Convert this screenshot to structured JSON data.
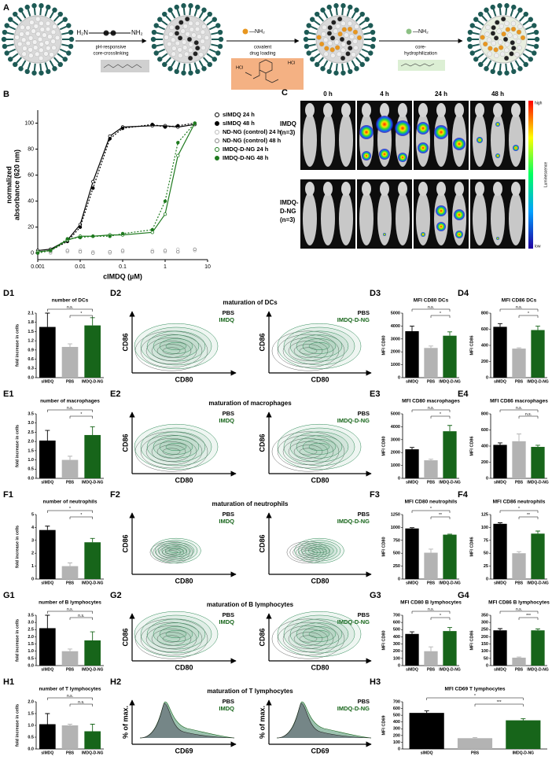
{
  "panel_a": {
    "label": "A",
    "linker": {
      "left": "H₂N",
      "right": "NH₂"
    },
    "steps": [
      {
        "line1": "pH-responsive",
        "line2": "core-crosslinking"
      },
      {
        "line1": "covalent",
        "line2": "drug loading"
      },
      {
        "line1": "core-",
        "line2": "hydrophilization"
      }
    ],
    "amine": "—NH₂",
    "salt": "HCl"
  },
  "panel_c": {
    "label": "C",
    "times": [
      "0 h",
      "4 h",
      "24 h",
      "48 h"
    ],
    "rows": [
      [
        "IMDQ",
        "(n=3)"
      ],
      [
        "IMDQ-",
        "D-NG",
        "(n=3)"
      ]
    ],
    "scale": {
      "high": "high",
      "low": "low",
      "title": "Luminescence"
    }
  },
  "contour_panels": [
    {
      "panel": "D2",
      "title": "maturation of DCs",
      "y_label": "CD86",
      "x_label": "CD80",
      "legends": [
        [
          "PBS",
          "IMDQ"
        ],
        [
          "PBS",
          "IMDQ-D-NG"
        ]
      ]
    },
    {
      "panel": "E2",
      "title": "maturation of macrophages",
      "y_label": "CD86",
      "x_label": "CD80",
      "legends": [
        [
          "PBS",
          "IMDQ"
        ],
        [
          "PBS",
          "IMDQ-D-NG"
        ]
      ]
    },
    {
      "panel": "F2",
      "title": "maturation of neutrophils",
      "y_label": "CD86",
      "x_label": "CD80",
      "legends": [
        [
          "PBS",
          "IMDQ"
        ],
        [
          "PBS",
          "IMDQ-D-NG"
        ]
      ]
    },
    {
      "panel": "G2",
      "title": "maturation of B lymphocytes",
      "y_label": "CD86",
      "x_label": "CD80",
      "legends": [
        [
          "PBS",
          "IMDQ"
        ],
        [
          "PBS",
          "IMDQ-D-NG"
        ]
      ]
    },
    {
      "panel": "H2",
      "title": "maturation of T lymphocytes",
      "y_label": "% of max.",
      "x_label": "CD69",
      "legends": [
        [
          "PBS",
          "IMDQ"
        ],
        [
          "PBS",
          "IMDQ-D-NG"
        ]
      ]
    }
  ],
  "chart_data": [
    {
      "type": "line",
      "panel": "B",
      "y_label": [
        "normalized",
        "absorbance (620 nm)"
      ],
      "x_label": "cIMDQ (µM)",
      "log_x": true,
      "xlim": [
        0.001,
        10
      ],
      "xticks": [
        0.001,
        0.01,
        0.1,
        1,
        10
      ],
      "ylim": [
        -5,
        110
      ],
      "yticks": [
        0,
        20,
        40,
        60,
        80,
        100
      ],
      "x": [
        0.001,
        0.002,
        0.005,
        0.01,
        0.02,
        0.05,
        0.1,
        0.5,
        1,
        2,
        5
      ],
      "series": [
        {
          "name": "sIMDQ 24 h",
          "color": "#000000",
          "marker": "open",
          "line_style": "solid",
          "values": [
            2,
            3,
            10,
            22,
            55,
            90,
            97,
            98,
            98,
            97,
            99
          ]
        },
        {
          "name": "sIMDQ 48 h",
          "color": "#000000",
          "marker": "filled",
          "line_style": "dotted",
          "values": [
            1,
            2,
            9,
            20,
            50,
            88,
            96,
            99,
            97,
            98,
            100
          ]
        },
        {
          "name": "ND-NG (control) 24 h",
          "color": "#bbbbbb",
          "marker": "open",
          "line_style": "none",
          "values": [
            1,
            0,
            1,
            2,
            1,
            0,
            1,
            2,
            1,
            3,
            2
          ]
        },
        {
          "name": "ND-NG (control) 48 h",
          "color": "#888888",
          "marker": "open",
          "line_style": "none",
          "values": [
            0,
            1,
            2,
            1,
            0,
            1,
            2,
            1,
            2,
            1,
            3
          ]
        },
        {
          "name": "IMDQ-D-NG 24 h",
          "color": "#1f7a1f",
          "marker": "open",
          "line_style": "solid",
          "values": [
            1,
            2,
            10,
            13,
            13,
            14,
            14,
            16,
            30,
            75,
            100
          ]
        },
        {
          "name": "IMDQ-D-NG 48 h",
          "color": "#1f7a1f",
          "marker": "filled",
          "line_style": "dotted",
          "values": [
            0,
            2,
            11,
            12,
            13,
            13,
            15,
            18,
            40,
            85,
            100
          ]
        }
      ]
    },
    {
      "type": "bar",
      "panel": "D1",
      "title": "number of DCs",
      "y_label": "fold increase in cells",
      "categories": [
        "sIMDQ",
        "PBS",
        "IMDQ-D-NG"
      ],
      "colors": [
        "#000000",
        "#b3b3b3",
        "#17651a"
      ],
      "values": [
        1.65,
        1.0,
        1.7
      ],
      "errors": [
        0.45,
        0.1,
        0.25
      ],
      "ylim": [
        0,
        2.1
      ],
      "yticks": [
        {
          "value": 0,
          "label": "0.0"
        },
        0.3,
        0.6,
        0.9,
        1.2,
        1.5,
        1.8,
        2.1
      ],
      "annotations": [
        "n.s.",
        "*"
      ]
    },
    {
      "type": "bar",
      "panel": "D3",
      "title": "MFI CD80 DCs",
      "y_label": "MFI CD80",
      "categories": [
        "sIMDQ",
        "PBS",
        "IMDQ-D-NG"
      ],
      "colors": [
        "#000000",
        "#b3b3b3",
        "#17651a"
      ],
      "values": [
        3600,
        2300,
        3250
      ],
      "errors": [
        400,
        150,
        300
      ],
      "ylim": [
        0,
        5000
      ],
      "yticks": [
        0,
        1000,
        2000,
        3000,
        4000,
        5000
      ],
      "annotations": [
        "n.s.",
        "*"
      ]
    },
    {
      "type": "bar",
      "panel": "D4",
      "title": "MFI CD86 DCs",
      "y_label": "MFI CD86",
      "categories": [
        "sIMDQ",
        "PBS",
        "IMDQ-D-NG"
      ],
      "colors": [
        "#000000",
        "#b3b3b3",
        "#17651a"
      ],
      "values": [
        630,
        360,
        590
      ],
      "errors": [
        40,
        10,
        50
      ],
      "ylim": [
        0,
        800
      ],
      "yticks": [
        0,
        200,
        400,
        600,
        800
      ],
      "annotations": [
        "n.s.",
        "*"
      ]
    },
    {
      "type": "bar",
      "panel": "E1",
      "title": "number of macrophages",
      "y_label": "fold increase in cells",
      "categories": [
        "sIMDQ",
        "PBS",
        "IMDQ-D-NG"
      ],
      "colors": [
        "#000000",
        "#b3b3b3",
        "#17651a"
      ],
      "values": [
        2.05,
        1.0,
        2.35
      ],
      "errors": [
        0.55,
        0.2,
        0.45
      ],
      "ylim": [
        0,
        3.5
      ],
      "yticks": [
        {
          "value": 0,
          "label": "0.0"
        },
        0.5,
        {
          "value": 1,
          "label": "1.0"
        },
        1.5,
        {
          "value": 2,
          "label": "2.0"
        },
        2.5,
        {
          "value": 3,
          "label": "3.0"
        },
        3.5
      ],
      "annotations": [
        "n.s.",
        "*"
      ]
    },
    {
      "type": "bar",
      "panel": "E3",
      "title": "MFI CD80 macrophages",
      "y_label": "MFI CD80",
      "categories": [
        "sIMDQ",
        "PBS",
        "IMDQ-D-NG"
      ],
      "colors": [
        "#000000",
        "#b3b3b3",
        "#17651a"
      ],
      "values": [
        2250,
        1400,
        3650
      ],
      "errors": [
        150,
        80,
        450
      ],
      "ylim": [
        0,
        5000
      ],
      "yticks": [
        0,
        1000,
        2000,
        3000,
        4000,
        5000
      ],
      "annotations": [
        "n.s.",
        "*"
      ]
    },
    {
      "type": "bar",
      "panel": "E4",
      "title": "MFI CD86 macrophages",
      "y_label": "MFI CD86",
      "categories": [
        "sIMDQ",
        "PBS",
        "IMDQ-D-NG"
      ],
      "colors": [
        "#000000",
        "#b3b3b3",
        "#17651a"
      ],
      "values": [
        415,
        460,
        390
      ],
      "errors": [
        25,
        90,
        20
      ],
      "ylim": [
        0,
        800
      ],
      "yticks": [
        0,
        200,
        400,
        600,
        800
      ],
      "annotations": [
        "n.s.",
        "n.s."
      ]
    },
    {
      "type": "bar",
      "panel": "F1",
      "title": "number of neutrophils",
      "y_label": "fold increase in cells",
      "categories": [
        "sIMDQ",
        "PBS",
        "IMDQ-D-NG"
      ],
      "colors": [
        "#000000",
        "#b3b3b3",
        "#17651a"
      ],
      "values": [
        3.8,
        1.0,
        2.85
      ],
      "errors": [
        0.3,
        0.25,
        0.3
      ],
      "ylim": [
        0,
        5
      ],
      "yticks": [
        0,
        1,
        2,
        3,
        4,
        5
      ],
      "annotations": [
        "*",
        "*"
      ]
    },
    {
      "type": "bar",
      "panel": "F3",
      "title": "MFI CD80 neutrophils",
      "y_label": "MFI CD80",
      "categories": [
        "sIMDQ",
        "PBS",
        "IMDQ-D-NG"
      ],
      "colors": [
        "#000000",
        "#b3b3b3",
        "#17651a"
      ],
      "values": [
        980,
        510,
        860
      ],
      "errors": [
        15,
        70,
        10
      ],
      "ylim": [
        0,
        1250
      ],
      "yticks": [
        0,
        250,
        500,
        750,
        1000,
        1250
      ],
      "annotations": [
        "*",
        "**"
      ]
    },
    {
      "type": "bar",
      "panel": "F4",
      "title": "MFI CD86 neutrophils",
      "y_label": "MFI CD86",
      "categories": [
        "sIMDQ",
        "PBS",
        "IMDQ-D-NG"
      ],
      "colors": [
        "#000000",
        "#b3b3b3",
        "#17651a"
      ],
      "values": [
        107,
        50,
        88
      ],
      "errors": [
        2,
        3,
        5
      ],
      "ylim": [
        0,
        125
      ],
      "yticks": [
        0,
        25,
        50,
        75,
        100,
        125
      ],
      "annotations": [
        "*",
        "**"
      ]
    },
    {
      "type": "bar",
      "panel": "G1",
      "title": "number of B lymphocytes",
      "y_label": "fold increase in cells",
      "categories": [
        "sIMDQ",
        "PBS",
        "IMDQ-D-NG"
      ],
      "colors": [
        "#000000",
        "#b3b3b3",
        "#17651a"
      ],
      "values": [
        2.6,
        1.0,
        1.75
      ],
      "errors": [
        0.9,
        0.15,
        0.6
      ],
      "ylim": [
        0,
        3.5
      ],
      "yticks": [
        {
          "value": 0,
          "label": "0.0"
        },
        0.5,
        {
          "value": 1,
          "label": "1.0"
        },
        1.5,
        {
          "value": 2,
          "label": "2.0"
        },
        2.5,
        {
          "value": 3,
          "label": "3.0"
        },
        3.5
      ],
      "annotations": [
        "n.s.",
        "n.s."
      ]
    },
    {
      "type": "bar",
      "panel": "G3",
      "title": "MFI CD80 B lymphocytes",
      "y_label": "MFI CD80",
      "categories": [
        "sIMDQ",
        "PBS",
        "IMDQ-D-NG"
      ],
      "colors": [
        "#000000",
        "#b3b3b3",
        "#17651a"
      ],
      "values": [
        440,
        200,
        480
      ],
      "errors": [
        30,
        60,
        50
      ],
      "ylim": [
        0,
        700
      ],
      "yticks": [
        0,
        100,
        200,
        300,
        400,
        500,
        600,
        700
      ],
      "annotations": [
        "n.s.",
        "*"
      ]
    },
    {
      "type": "bar",
      "panel": "G4",
      "title": "MFI CD86 B lymphocytes",
      "y_label": "MFI CD86",
      "categories": [
        "sIMDQ",
        "PBS",
        "IMDQ-D-NG"
      ],
      "colors": [
        "#000000",
        "#b3b3b3",
        "#17651a"
      ],
      "values": [
        245,
        55,
        245
      ],
      "errors": [
        12,
        5,
        10
      ],
      "ylim": [
        0,
        350
      ],
      "yticks": [
        0,
        50,
        100,
        150,
        200,
        250,
        300,
        350
      ],
      "annotations": [
        "n.s.",
        "***"
      ]
    },
    {
      "type": "bar",
      "panel": "H1",
      "title": "number of T lymphocytes",
      "y_label": "fold increase in cells",
      "categories": [
        "sIMDQ",
        "PBS",
        "IMDQ-D-NG"
      ],
      "colors": [
        "#000000",
        "#b3b3b3",
        "#17651a"
      ],
      "values": [
        1.05,
        1.0,
        0.75
      ],
      "errors": [
        0.45,
        0.05,
        0.3
      ],
      "ylim": [
        0,
        2
      ],
      "yticks": [
        {
          "value": 0,
          "label": "0.0"
        },
        0.5,
        {
          "value": 1,
          "label": "1.0"
        },
        1.5,
        {
          "value": 2,
          "label": "2.0"
        }
      ],
      "annotations": [
        "n.s.",
        "n.s."
      ]
    },
    {
      "type": "bar",
      "panel": "H3",
      "title": "MFI CD69 T lymphocytes",
      "y_label": "MFI CD69",
      "categories": [
        "sIMDQ",
        "PBS",
        "IMDQ-D-NG"
      ],
      "colors": [
        "#000000",
        "#b3b3b3",
        "#17651a"
      ],
      "values": [
        535,
        160,
        425
      ],
      "errors": [
        30,
        10,
        25
      ],
      "ylim": [
        0,
        700
      ],
      "yticks": [
        0,
        100,
        200,
        300,
        400,
        500,
        600,
        700
      ],
      "annotations": [
        "*",
        "***"
      ]
    }
  ]
}
